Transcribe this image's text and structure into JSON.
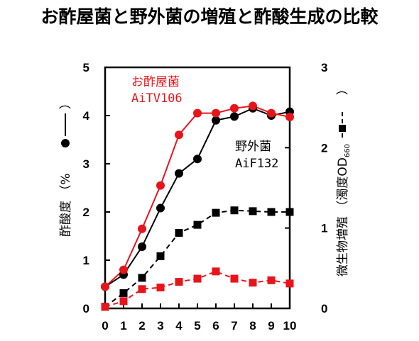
{
  "chart_data": {
    "type": "line",
    "title": "お酢屋菌と野外菌の増殖と酢酸生成の比較",
    "x": [
      0,
      1,
      2,
      3,
      4,
      5,
      6,
      7,
      8,
      9,
      10
    ],
    "x_ticks": [
      "0",
      "1",
      "2",
      "3",
      "4",
      "5",
      "6",
      "7",
      "8",
      "9",
      "10"
    ],
    "ylim_left": [
      0,
      5
    ],
    "y_left_ticks": [
      "0",
      "1",
      "2",
      "3",
      "4",
      "5"
    ],
    "ylim_right": [
      0,
      3
    ],
    "y_right_ticks": [
      "0",
      "1",
      "2",
      "3"
    ],
    "ylabel_left": "酢酸度 （% ",
    "ylabel_right": "微生物増殖 （濁度OD",
    "ylabel_right_sub": "660",
    "ylabel_right_close": "）",
    "series": [
      {
        "name": "お酢屋菌 AiTV106",
        "kind": "acidity",
        "axis": "left",
        "color": "#e8141b",
        "dash": false,
        "marker": "circle",
        "values": [
          0.45,
          0.8,
          1.65,
          2.55,
          3.6,
          4.05,
          4.05,
          4.15,
          4.2,
          4.05,
          3.97
        ]
      },
      {
        "name": "野外菌 AiF132",
        "kind": "acidity",
        "axis": "left",
        "color": "#000000",
        "dash": false,
        "marker": "circle",
        "values": [
          0.45,
          0.7,
          1.28,
          2.08,
          2.8,
          3.1,
          3.9,
          3.98,
          4.15,
          4.0,
          4.08
        ]
      },
      {
        "name": "お酢屋菌 AiTV106",
        "kind": "growth",
        "axis": "right",
        "color": "#e8141b",
        "dash": true,
        "marker": "square",
        "values": [
          0.02,
          0.09,
          0.24,
          0.26,
          0.33,
          0.37,
          0.46,
          0.37,
          0.32,
          0.35,
          0.31
        ]
      },
      {
        "name": "野外菌 AiF132",
        "kind": "growth",
        "axis": "right",
        "color": "#000000",
        "dash": true,
        "marker": "square",
        "values": [
          0.02,
          0.19,
          0.38,
          0.65,
          0.94,
          1.04,
          1.19,
          1.22,
          1.21,
          1.2,
          1.2
        ]
      }
    ],
    "annotations": [
      {
        "lines": [
          "お酢屋菌",
          "AiTV106"
        ],
        "color": "#e8141b"
      },
      {
        "lines": [
          "野外菌",
          "AiF132"
        ],
        "color": "#000000"
      }
    ],
    "grid": false
  }
}
